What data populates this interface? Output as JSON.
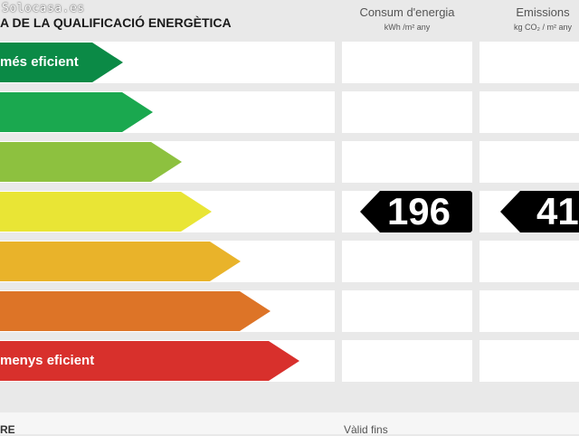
{
  "watermark": "Solocasa.es",
  "header": {
    "title": "A DE LA QUALIFICACIÓ ENERGÈTICA",
    "consum_title": "Consum d'energia",
    "consum_units": "kWh /m² any",
    "emissions_title": "Emissions",
    "emissions_units": "kg CO₂ / m² any"
  },
  "scale": [
    {
      "label": "més eficient",
      "color": "#0b8a46"
    },
    {
      "label": "",
      "color": "#1aa84f"
    },
    {
      "label": "",
      "color": "#8dc13f"
    },
    {
      "label": "",
      "color": "#e9e535"
    },
    {
      "label": "",
      "color": "#e9b32a"
    },
    {
      "label": "",
      "color": "#dd7427"
    },
    {
      "label": "menys eficient",
      "color": "#d8302c"
    }
  ],
  "rating": {
    "consum_value": "196",
    "emissions_value": "41"
  },
  "footer": {
    "left": "RE",
    "valid_label": "Vàlid fins"
  }
}
